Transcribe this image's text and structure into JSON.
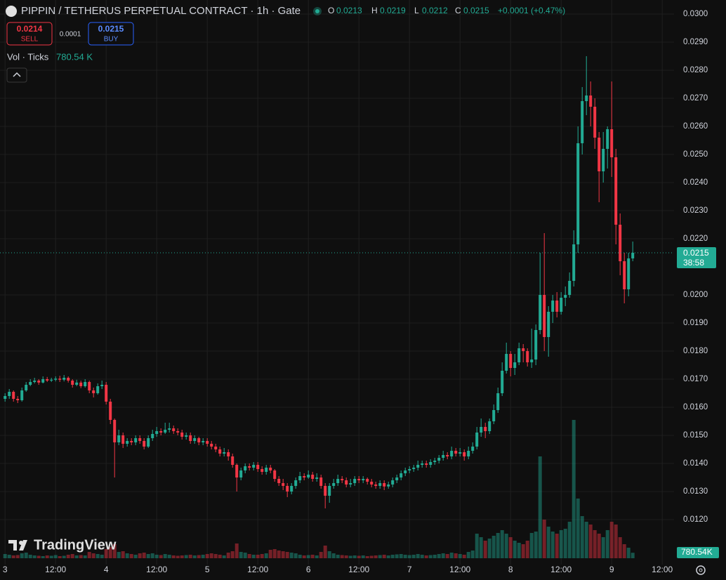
{
  "chart_data": {
    "type": "candlestick",
    "title": "PIPPIN / TETHERUS PERPETUAL CONTRACT · 1h · Gate",
    "ohlc_labels": [
      "O",
      "H",
      "L",
      "C"
    ],
    "ohlc_values": [
      "0.0213",
      "0.0219",
      "0.0212",
      "0.0215"
    ],
    "change": "+0.0001 (+0.47%)",
    "volume_title": "Vol · Ticks",
    "volume_value": "780.54 K",
    "up_color": "#22ab94",
    "down_color": "#f23645",
    "grid": true,
    "xlim": [
      -1.2,
      158.8
    ],
    "ylim": [
      0.0104,
      0.0305
    ],
    "vlim": [
      0,
      40000
    ],
    "yticks": [
      {
        "value": 0.012,
        "label": "0.0120"
      },
      {
        "value": 0.013,
        "label": "0.0130"
      },
      {
        "value": 0.014,
        "label": "0.0140"
      },
      {
        "value": 0.015,
        "label": "0.0150"
      },
      {
        "value": 0.016,
        "label": "0.0160"
      },
      {
        "value": 0.017,
        "label": "0.0170"
      },
      {
        "value": 0.018,
        "label": "0.0180"
      },
      {
        "value": 0.019,
        "label": "0.0190"
      },
      {
        "value": 0.02,
        "label": "0.0200"
      },
      {
        "value": 0.022,
        "label": "0.0220"
      },
      {
        "value": 0.023,
        "label": "0.0230"
      },
      {
        "value": 0.024,
        "label": "0.0240"
      },
      {
        "value": 0.025,
        "label": "0.0250"
      },
      {
        "value": 0.026,
        "label": "0.0260"
      },
      {
        "value": 0.027,
        "label": "0.0270"
      },
      {
        "value": 0.028,
        "label": "0.0280"
      },
      {
        "value": 0.029,
        "label": "0.0290"
      },
      {
        "value": 0.03,
        "label": "0.0300"
      }
    ],
    "xticks": [
      {
        "value": 0,
        "label": "3"
      },
      {
        "value": 12,
        "label": "12:00"
      },
      {
        "value": 24,
        "label": "4"
      },
      {
        "value": 36,
        "label": "12:00"
      },
      {
        "value": 48,
        "label": "5"
      },
      {
        "value": 60,
        "label": "12:00"
      },
      {
        "value": 72,
        "label": "6"
      },
      {
        "value": 84,
        "label": "12:00"
      },
      {
        "value": 96,
        "label": "7"
      },
      {
        "value": 108,
        "label": "12:00"
      },
      {
        "value": 120,
        "label": "8"
      },
      {
        "value": 132,
        "label": "12:00"
      },
      {
        "value": 144,
        "label": "9"
      },
      {
        "value": 156,
        "label": "12:00"
      }
    ],
    "open": [
      0.0163,
      0.0164,
      0.01655,
      0.0163,
      0.01625,
      0.0166,
      0.0168,
      0.0169,
      0.01695,
      0.01688,
      0.017,
      0.01695,
      0.01698,
      0.01702,
      0.01698,
      0.01705,
      0.01695,
      0.0168,
      0.01688,
      0.01675,
      0.0169,
      0.0166,
      0.0165,
      0.01675,
      0.0168,
      0.0162,
      0.01555,
      0.01475,
      0.015,
      0.0147,
      0.0148,
      0.01475,
      0.0149,
      0.0148,
      0.0146,
      0.0149,
      0.01505,
      0.01515,
      0.0151,
      0.0152,
      0.01525,
      0.01515,
      0.0151,
      0.01495,
      0.015,
      0.0148,
      0.0149,
      0.01475,
      0.0148,
      0.0147,
      0.0146,
      0.0145,
      0.01435,
      0.0144,
      0.01425,
      0.01395,
      0.0135,
      0.01375,
      0.0139,
      0.01385,
      0.01395,
      0.0138,
      0.0137,
      0.01385,
      0.01375,
      0.01345,
      0.0133,
      0.0132,
      0.013,
      0.0132,
      0.0134,
      0.01355,
      0.0135,
      0.0136,
      0.01345,
      0.0135,
      0.0132,
      0.01285,
      0.0132,
      0.0133,
      0.01345,
      0.0134,
      0.01325,
      0.0133,
      0.01345,
      0.0134,
      0.01345,
      0.01335,
      0.01325,
      0.0132,
      0.0133,
      0.01318,
      0.01325,
      0.0134,
      0.0135,
      0.01365,
      0.01375,
      0.0138,
      0.01385,
      0.01395,
      0.014,
      0.01395,
      0.01405,
      0.0141,
      0.0142,
      0.0143,
      0.01425,
      0.01445,
      0.01435,
      0.0144,
      0.01425,
      0.01445,
      0.0146,
      0.0151,
      0.0153,
      0.01515,
      0.0155,
      0.0159,
      0.0165,
      0.0173,
      0.0179,
      0.0174,
      0.0176,
      0.0181,
      0.018,
      0.0176,
      0.0177,
      0.01875,
      0.02,
      0.0185,
      0.0194,
      0.0198,
      0.0194,
      0.0199,
      0.02,
      0.0205,
      0.0218,
      0.0254,
      0.0269,
      0.0271,
      0.0267,
      0.0256,
      0.0244,
      0.0252,
      0.0259,
      0.0249,
      0.0225,
      0.0212,
      0.0202,
      0.0213
    ],
    "high": [
      0.0165,
      0.01665,
      0.0166,
      0.0164,
      0.0167,
      0.0169,
      0.017,
      0.01705,
      0.017,
      0.0171,
      0.01708,
      0.01705,
      0.0171,
      0.01712,
      0.01715,
      0.0171,
      0.017,
      0.01698,
      0.01695,
      0.017,
      0.01695,
      0.0167,
      0.01685,
      0.01695,
      0.0169,
      0.0163,
      0.0156,
      0.0152,
      0.0151,
      0.0149,
      0.0149,
      0.015,
      0.015,
      0.0149,
      0.015,
      0.0152,
      0.0153,
      0.01525,
      0.01545,
      0.01545,
      0.01535,
      0.01525,
      0.0152,
      0.0151,
      0.0151,
      0.015,
      0.01495,
      0.0149,
      0.0149,
      0.0148,
      0.0147,
      0.0146,
      0.01455,
      0.0145,
      0.01435,
      0.014,
      0.01385,
      0.014,
      0.014,
      0.01405,
      0.01405,
      0.0139,
      0.01395,
      0.01395,
      0.0138,
      0.01355,
      0.01345,
      0.0133,
      0.0133,
      0.0135,
      0.0137,
      0.01365,
      0.01375,
      0.0137,
      0.01365,
      0.0136,
      0.0133,
      0.0133,
      0.01345,
      0.0136,
      0.01355,
      0.0135,
      0.01345,
      0.01355,
      0.01355,
      0.01355,
      0.0135,
      0.01345,
      0.01335,
      0.0134,
      0.0134,
      0.01335,
      0.0135,
      0.0136,
      0.01375,
      0.01385,
      0.0139,
      0.01395,
      0.0141,
      0.0141,
      0.0141,
      0.01415,
      0.0142,
      0.0143,
      0.01445,
      0.0144,
      0.0146,
      0.01455,
      0.01455,
      0.0145,
      0.0146,
      0.01475,
      0.0153,
      0.0156,
      0.01545,
      0.0156,
      0.0161,
      0.0167,
      0.0176,
      0.0183,
      0.018,
      0.0179,
      0.0183,
      0.01825,
      0.0181,
      0.0188,
      0.01895,
      0.0215,
      0.0222,
      0.0196,
      0.02,
      0.0201,
      0.0201,
      0.0203,
      0.0208,
      0.0223,
      0.026,
      0.0274,
      0.0285,
      0.0276,
      0.027,
      0.0258,
      0.0258,
      0.026,
      0.0276,
      0.0252,
      0.0229,
      0.0215,
      0.0215,
      0.0219
    ],
    "low": [
      0.0162,
      0.0163,
      0.0162,
      0.01615,
      0.0162,
      0.01655,
      0.01675,
      0.01685,
      0.0168,
      0.01685,
      0.0169,
      0.0169,
      0.01692,
      0.0169,
      0.01692,
      0.01688,
      0.0167,
      0.01675,
      0.01668,
      0.0167,
      0.0165,
      0.01635,
      0.01645,
      0.01665,
      0.0161,
      0.0154,
      0.0135,
      0.01465,
      0.01455,
      0.0146,
      0.01465,
      0.01465,
      0.0147,
      0.0145,
      0.01455,
      0.0148,
      0.01495,
      0.015,
      0.01505,
      0.0151,
      0.01505,
      0.015,
      0.01485,
      0.01485,
      0.0147,
      0.0147,
      0.01465,
      0.01465,
      0.0146,
      0.0145,
      0.0144,
      0.01425,
      0.01425,
      0.0141,
      0.01385,
      0.013,
      0.0134,
      0.01365,
      0.01375,
      0.01375,
      0.0137,
      0.0136,
      0.0136,
      0.01365,
      0.01335,
      0.0132,
      0.01305,
      0.0128,
      0.0129,
      0.0131,
      0.0133,
      0.0134,
      0.01345,
      0.01335,
      0.01335,
      0.0131,
      0.0124,
      0.0126,
      0.0131,
      0.0132,
      0.0133,
      0.01315,
      0.01315,
      0.0132,
      0.0133,
      0.0133,
      0.01325,
      0.01315,
      0.0131,
      0.0131,
      0.01305,
      0.0131,
      0.01315,
      0.0133,
      0.0134,
      0.01355,
      0.01365,
      0.0137,
      0.01375,
      0.01385,
      0.01385,
      0.01385,
      0.01395,
      0.014,
      0.0141,
      0.01415,
      0.01415,
      0.01425,
      0.01425,
      0.0141,
      0.01415,
      0.01435,
      0.0145,
      0.01495,
      0.0149,
      0.01505,
      0.0154,
      0.0158,
      0.0164,
      0.0172,
      0.0171,
      0.01715,
      0.0175,
      0.0176,
      0.01745,
      0.0174,
      0.0175,
      0.0186,
      0.018,
      0.0178,
      0.019,
      0.0192,
      0.0193,
      0.0196,
      0.0199,
      0.0203,
      0.0215,
      0.025,
      0.0264,
      0.026,
      0.0252,
      0.0233,
      0.024,
      0.0245,
      0.0242,
      0.0218,
      0.0207,
      0.0197,
      0.01995,
      0.0212
    ],
    "close": [
      0.0164,
      0.01655,
      0.0163,
      0.01625,
      0.0166,
      0.0168,
      0.0169,
      0.01695,
      0.01688,
      0.017,
      0.01695,
      0.01698,
      0.01702,
      0.01698,
      0.01705,
      0.01695,
      0.0168,
      0.01688,
      0.01675,
      0.0169,
      0.0166,
      0.0165,
      0.01675,
      0.0168,
      0.0162,
      0.01555,
      0.01475,
      0.015,
      0.0147,
      0.0148,
      0.01475,
      0.0149,
      0.0148,
      0.0146,
      0.0149,
      0.01505,
      0.01515,
      0.0151,
      0.0152,
      0.01525,
      0.01515,
      0.0151,
      0.01495,
      0.015,
      0.0148,
      0.0149,
      0.01475,
      0.0148,
      0.0147,
      0.0146,
      0.0145,
      0.01435,
      0.0144,
      0.01425,
      0.01395,
      0.0135,
      0.01375,
      0.0139,
      0.01385,
      0.01395,
      0.0138,
      0.0137,
      0.01385,
      0.01375,
      0.01345,
      0.0133,
      0.0132,
      0.013,
      0.0132,
      0.0134,
      0.01355,
      0.0135,
      0.0136,
      0.01345,
      0.0135,
      0.0132,
      0.01285,
      0.0132,
      0.0133,
      0.01345,
      0.0134,
      0.01325,
      0.0133,
      0.01345,
      0.0134,
      0.01345,
      0.01335,
      0.01325,
      0.0132,
      0.0133,
      0.01318,
      0.01325,
      0.0134,
      0.0135,
      0.01365,
      0.01375,
      0.0138,
      0.01385,
      0.01395,
      0.014,
      0.01395,
      0.01405,
      0.0141,
      0.0142,
      0.0143,
      0.01425,
      0.01445,
      0.01435,
      0.0144,
      0.01425,
      0.01445,
      0.0146,
      0.0151,
      0.0153,
      0.01515,
      0.0155,
      0.0159,
      0.0165,
      0.0173,
      0.0179,
      0.0174,
      0.0176,
      0.0181,
      0.018,
      0.0176,
      0.0177,
      0.01875,
      0.02,
      0.0185,
      0.0194,
      0.0198,
      0.0194,
      0.0199,
      0.02,
      0.0205,
      0.0218,
      0.0254,
      0.0269,
      0.0271,
      0.0267,
      0.0256,
      0.0244,
      0.0252,
      0.0259,
      0.0249,
      0.0225,
      0.0212,
      0.0202,
      0.0213,
      0.0215
    ],
    "volume": [
      600,
      500,
      400,
      450,
      700,
      800,
      500,
      400,
      350,
      300,
      400,
      350,
      450,
      300,
      350,
      500,
      600,
      400,
      450,
      400,
      900,
      700,
      600,
      500,
      1300,
      1600,
      2000,
      900,
      1000,
      700,
      600,
      500,
      700,
      800,
      600,
      700,
      500,
      450,
      600,
      500,
      400,
      350,
      400,
      450,
      500,
      400,
      450,
      500,
      600,
      700,
      600,
      500,
      400,
      800,
      1000,
      2100,
      900,
      800,
      600,
      500,
      500,
      600,
      700,
      1200,
      1300,
      1100,
      1000,
      900,
      800,
      700,
      500,
      400,
      450,
      500,
      400,
      900,
      1800,
      1000,
      700,
      500,
      450,
      400,
      350,
      400,
      350,
      400,
      300,
      350,
      400,
      450,
      500,
      400,
      500,
      550,
      600,
      500,
      450,
      500,
      600,
      500,
      400,
      450,
      500,
      600,
      700,
      600,
      800,
      700,
      600,
      500,
      900,
      1100,
      3500,
      3000,
      2500,
      2800,
      3200,
      3600,
      4000,
      3500,
      3000,
      2500,
      2200,
      2000,
      2500,
      3600,
      3800,
      14500,
      5500,
      4500,
      3800,
      3500,
      4000,
      4200,
      5200,
      19700,
      8500,
      6000,
      5200,
      4800,
      4000,
      3500,
      3000,
      4000,
      5200,
      4800,
      3000,
      2000,
      1500,
      780.54
    ],
    "volume_label": "780.54K",
    "last_price_label": "0.0215",
    "countdown": "38:58"
  },
  "trade": {
    "sell_price": "0.0214",
    "sell": "SELL",
    "spread": "0.0001",
    "buy_price": "0.0215",
    "buy": "BUY"
  },
  "brand": "TradingView"
}
